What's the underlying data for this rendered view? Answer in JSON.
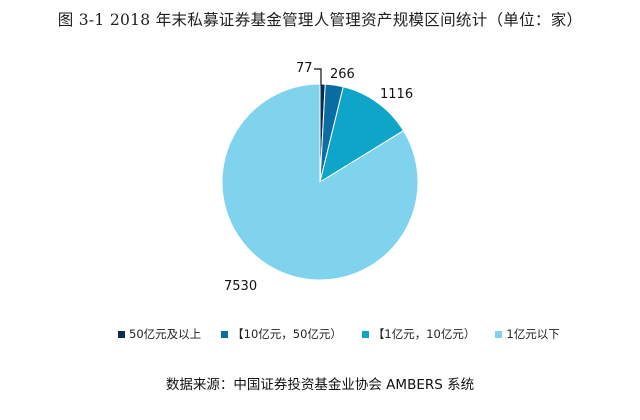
{
  "title": "图 3-1 2018 年末私募证券基金管理人管理资产规模区间统计（单位：家）",
  "source": "数据来源：中国证券投资基金业协会 AMBERS 系统",
  "chart_data": {
    "type": "pie",
    "unit": "家",
    "categories": [
      "50亿元及以上",
      "【10亿元，50亿元）",
      "【1亿元，10亿元）",
      "1亿元以下"
    ],
    "values": [
      77,
      266,
      1116,
      7530
    ],
    "colors": [
      "#0b2c4f",
      "#0b6ea3",
      "#0ea5c9",
      "#7fd3ec"
    ],
    "start_angle": "12 o'clock",
    "direction": "clockwise",
    "legend_position": "bottom"
  }
}
